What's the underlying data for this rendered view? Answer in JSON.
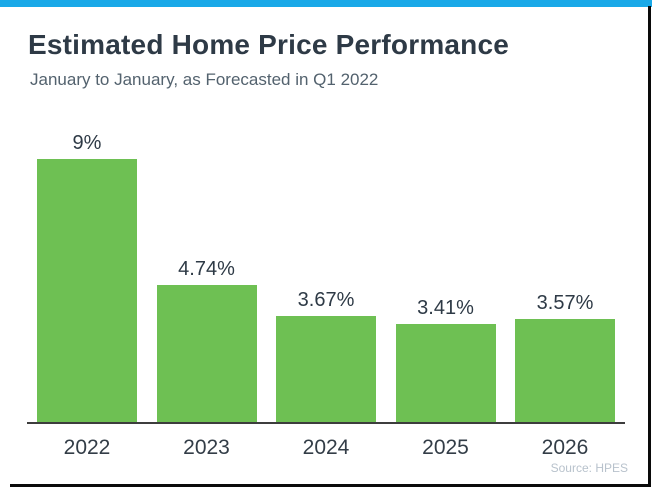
{
  "header": {
    "title": "Estimated Home Price Performance",
    "subtitle": "January to January, as Forecasted in Q1 2022"
  },
  "chart_data": {
    "type": "bar",
    "title": "Estimated Home Price Performance",
    "subtitle": "January to January, as Forecasted in Q1 2022",
    "categories": [
      "2022",
      "2023",
      "2024",
      "2025",
      "2026"
    ],
    "values": [
      9,
      4.74,
      3.67,
      3.41,
      3.57
    ],
    "value_labels": [
      "9%",
      "4.74%",
      "3.67%",
      "3.41%",
      "3.57%"
    ],
    "xlabel": "",
    "ylabel": "",
    "ylim": [
      0,
      10
    ],
    "grid": false,
    "legend": false,
    "bar_color": "#6ec053"
  },
  "footer": {
    "source_label": "Source: HPES"
  },
  "colors": {
    "accent_blue": "#1aa9e8",
    "bar_green": "#6ec053",
    "title_text": "#2e3a46",
    "subtitle_text": "#53626e",
    "axis_line": "#3d3d3d",
    "source_text": "#b8c2cc",
    "shadow": "#0a0a0a"
  }
}
